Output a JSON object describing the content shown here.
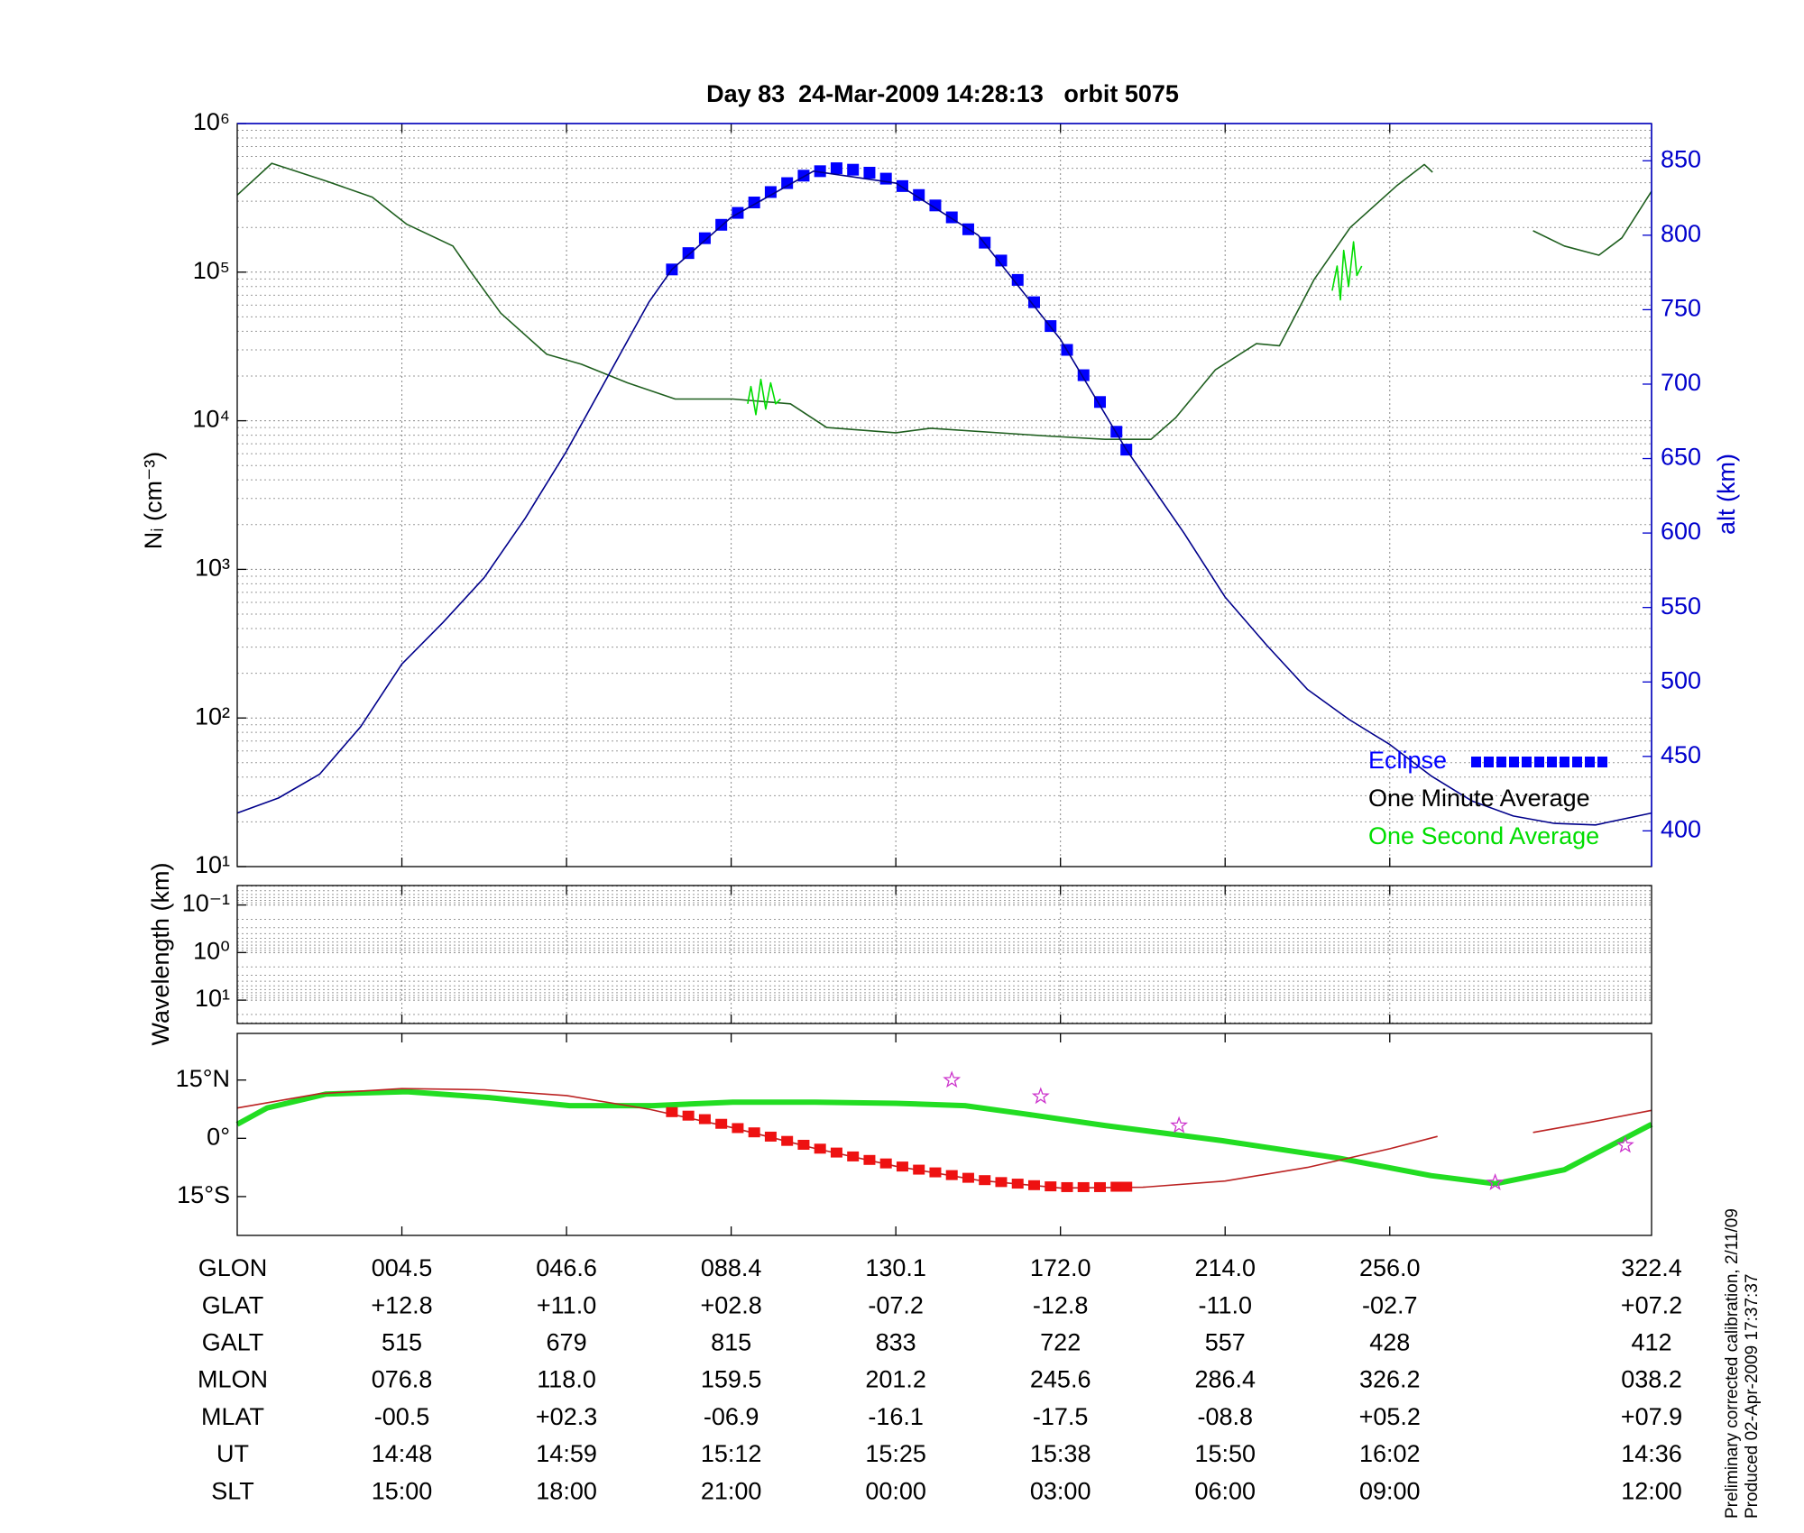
{
  "chart_data": [
    {
      "type": "line",
      "title": "Day 83  24-Mar-2009 14:28:13   orbit 5075",
      "ylabel": "Nᵢ (cm⁻³)",
      "y2label": "alt (km)",
      "yscale": "log",
      "grid": true,
      "legend": "lower right",
      "xlim": [
        0,
        8.59
      ],
      "xticks": [
        1,
        2,
        3,
        4,
        5,
        6,
        7
      ],
      "ylim": [
        10,
        1000000
      ],
      "yticks": [
        {
          "value": 10,
          "label": "10¹"
        },
        {
          "value": 100,
          "label": "10²"
        },
        {
          "value": 1000,
          "label": "10³"
        },
        {
          "value": 10000,
          "label": "10⁴"
        },
        {
          "value": 100000,
          "label": "10⁵"
        },
        {
          "value": 1000000,
          "label": "10⁶"
        }
      ],
      "y2lim": [
        376,
        875
      ],
      "y2ticks": [
        400,
        450,
        500,
        550,
        600,
        650,
        700,
        750,
        800,
        850
      ],
      "y2color": "#0000cc",
      "series": [
        {
          "name": "Eclipse",
          "color": "#0000ff",
          "legend_color": "#0000ff",
          "axis": "y2",
          "marker": "square",
          "x": [
            2.64,
            2.74,
            2.84,
            2.94,
            3.04,
            3.14,
            3.24,
            3.34,
            3.44,
            3.54,
            3.64,
            3.74,
            3.84,
            3.94,
            4.04,
            4.14,
            4.24,
            4.34,
            4.44,
            4.54,
            4.64,
            4.74,
            4.84,
            4.94,
            5.04,
            5.14,
            5.24,
            5.34,
            5.4
          ],
          "values": [
            777,
            788,
            798,
            807,
            815,
            822,
            829,
            835,
            840,
            843,
            845,
            844,
            842,
            838,
            833,
            827,
            820,
            812,
            804,
            795,
            783,
            770,
            755,
            739,
            723,
            706,
            688,
            668,
            656
          ]
        },
        {
          "name": "One Minute Average",
          "color": "#1f5f1f",
          "legend_color": "#000000",
          "marker": "line",
          "style": "thin",
          "x": [
            0,
            0.21,
            0.54,
            0.82,
            1.03,
            1.31,
            1.42,
            1.6,
            1.88,
            2.09,
            2.37,
            2.66,
            3.01,
            3.36,
            3.58,
            4.0,
            4.21,
            4.92,
            5.27,
            5.55,
            5.7,
            5.94,
            6.19,
            6.33,
            6.54,
            6.76,
            7.04,
            7.21,
            7.26,
            7.5,
            7.87,
            8.06,
            8.27,
            8.41,
            8.59
          ],
          "values": [
            330000,
            540000,
            410000,
            320000,
            210000,
            150000,
            100000,
            53000,
            28000,
            24000,
            18000,
            14000,
            14000,
            13000,
            9000,
            8300,
            8900,
            7900,
            7500,
            7500,
            10500,
            22000,
            33000,
            32000,
            89000,
            200000,
            380000,
            530000,
            470000,
            null,
            190000,
            150000,
            130000,
            170000,
            350000
          ]
        },
        {
          "name": "One Second Average",
          "color": "#00dd00",
          "legend_color": "#00dd00",
          "marker": "line",
          "style": "thin",
          "x": [
            3.1,
            3.12,
            3.15,
            3.18,
            3.21,
            3.24,
            3.27,
            3.3,
            4.5,
            6.65,
            6.68,
            6.7,
            6.72,
            6.75,
            6.78,
            6.8,
            6.83
          ],
          "values": [
            13000,
            17000,
            11000,
            19000,
            12000,
            18000,
            13000,
            14000,
            null,
            75000,
            110000,
            65000,
            140000,
            80000,
            160000,
            95000,
            110000
          ]
        },
        {
          "color": "#00008b",
          "axis": "y2",
          "marker": "line",
          "style": "thin",
          "x": [
            0,
            0.25,
            0.5,
            0.75,
            1,
            1.25,
            1.5,
            1.75,
            2,
            2.25,
            2.5,
            2.64,
            3,
            3.5,
            4,
            4.5,
            5,
            5.4,
            5.75,
            6,
            6.25,
            6.5,
            6.75,
            7,
            7.25,
            7.5,
            7.75,
            8,
            8.25,
            8.59
          ],
          "values": [
            412,
            422,
            438,
            470,
            512,
            540,
            570,
            610,
            655,
            705,
            755,
            777,
            812,
            843,
            835,
            800,
            730,
            656,
            600,
            557,
            525,
            495,
            475,
            458,
            437,
            420,
            410,
            405,
            404,
            412
          ]
        }
      ]
    },
    {
      "type": "spectrogram",
      "ylabel": "Wavelength (km)",
      "yscale": "log",
      "y_inverted": true,
      "grid": true,
      "xlim": [
        0,
        8.59
      ],
      "xticks": [
        1,
        2,
        3,
        4,
        5,
        6,
        7
      ],
      "ylim": [
        0.039,
        31
      ],
      "yticks": [
        {
          "value": 0.1,
          "label": "10⁻¹"
        },
        {
          "value": 1,
          "label": "10⁰"
        },
        {
          "value": 10,
          "label": "10¹"
        }
      ]
    },
    {
      "type": "map",
      "xlim": [
        0,
        8.59
      ],
      "xticks": [
        1,
        2,
        3,
        4,
        5,
        6,
        7
      ],
      "ylim": [
        -25,
        27
      ],
      "yticks": [
        {
          "value": 15,
          "label": "15°N"
        },
        {
          "value": 0,
          "label": "0°"
        },
        {
          "value": -15,
          "label": "15°S"
        }
      ],
      "series": [
        {
          "color": "#22dd22",
          "marker": "line",
          "style": "thick",
          "x": [
            0,
            0.18,
            0.54,
            1.03,
            1.53,
            2.02,
            2.52,
            3.01,
            3.51,
            4.0,
            4.42,
            4.78,
            5.27,
            5.98,
            6.69,
            7.25,
            7.64,
            8.06,
            8.59
          ],
          "values": [
            3.6,
            7.8,
            11.4,
            12.0,
            10.5,
            8.4,
            8.4,
            9.3,
            9.3,
            9.0,
            8.4,
            6.3,
            3.3,
            -0.6,
            -5.1,
            -9.6,
            -11.7,
            -8.1,
            3.6
          ]
        },
        {
          "color": "#bb2222",
          "marker": "line",
          "style": "thin",
          "x": [
            0,
            0.5,
            1,
            1.5,
            2,
            2.5,
            3,
            3.5,
            4,
            4.5,
            5,
            5.5,
            6,
            6.5,
            7,
            7.29,
            7.6,
            7.87,
            8.2,
            8.59
          ],
          "values": [
            7.8,
            11.5,
            12.8,
            12.5,
            11.0,
            7.5,
            2.8,
            -2.5,
            -7.2,
            -10.8,
            -12.8,
            -12.6,
            -11.0,
            -7.5,
            -2.7,
            0.5,
            null,
            1.5,
            4.0,
            7.2
          ]
        },
        {
          "color": "#ee1111",
          "marker": "square",
          "x": [
            2.64,
            2.74,
            2.84,
            2.94,
            3.04,
            3.14,
            3.24,
            3.34,
            3.44,
            3.54,
            3.64,
            3.74,
            3.84,
            3.94,
            4.04,
            4.14,
            4.24,
            4.34,
            4.44,
            4.54,
            4.64,
            4.74,
            4.84,
            4.94,
            5.04,
            5.14,
            5.24,
            5.34,
            5.4
          ],
          "values": [
            6.5,
            5.6,
            4.7,
            3.5,
            2.4,
            1.3,
            0.2,
            -0.9,
            -1.9,
            -2.9,
            -3.9,
            -4.9,
            -5.8,
            -6.7,
            -7.5,
            -8.3,
            -9.0,
            -9.7,
            -10.4,
            -11.0,
            -11.5,
            -11.9,
            -12.3,
            -12.6,
            -12.8,
            -12.8,
            -12.8,
            -12.7,
            -12.7
          ]
        },
        {
          "color": "#cc33cc",
          "marker": "star",
          "x": [
            4.34,
            4.88,
            5.72,
            7.64,
            8.43
          ],
          "values": [
            15,
            10.8,
            3.3,
            -11.4,
            -1.8
          ]
        }
      ]
    }
  ],
  "table": {
    "rows": [
      {
        "label": "GLON",
        "values": [
          "004.5",
          "046.6",
          "088.4",
          "130.1",
          "172.0",
          "214.0",
          "256.0",
          "322.4"
        ]
      },
      {
        "label": "GLAT",
        "values": [
          "+12.8",
          "+11.0",
          "+02.8",
          "-07.2",
          "-12.8",
          "-11.0",
          "-02.7",
          "+07.2"
        ]
      },
      {
        "label": "GALT",
        "values": [
          "515",
          "679",
          "815",
          "833",
          "722",
          "557",
          "428",
          "412"
        ]
      },
      {
        "label": "MLON",
        "values": [
          "076.8",
          "118.0",
          "159.5",
          "201.2",
          "245.6",
          "286.4",
          "326.2",
          "038.2"
        ]
      },
      {
        "label": "MLAT",
        "values": [
          "-00.5",
          "+02.3",
          "-06.9",
          "-16.1",
          "-17.5",
          "-08.8",
          "+05.2",
          "+07.9"
        ]
      },
      {
        "label": "UT",
        "values": [
          "14:48",
          "14:59",
          "15:12",
          "15:25",
          "15:38",
          "15:50",
          "16:02",
          "14:36"
        ]
      },
      {
        "label": "SLT",
        "values": [
          "15:00",
          "18:00",
          "21:00",
          "00:00",
          "03:00",
          "06:00",
          "09:00",
          "12:00"
        ]
      }
    ]
  },
  "footnotes": [
    "Preliminary corrected calibration, 2/11/09",
    "Produced 02-Apr-2009 17:37:37"
  ]
}
